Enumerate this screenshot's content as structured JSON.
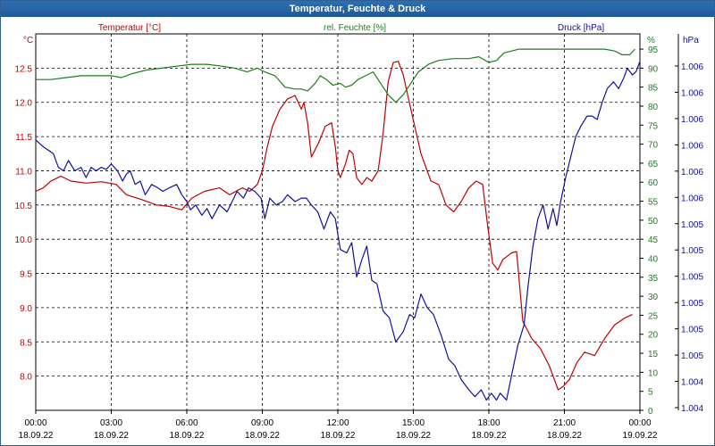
{
  "window": {
    "title": "Temperatur, Feuchte & Druck"
  },
  "colors": {
    "temperature": "#c00000",
    "humidity": "#1a7f1a",
    "pressure": "#1010a0",
    "grid": "#000000"
  },
  "chart_data": {
    "type": "line",
    "legend": {
      "temperature": "Temperatur [°C]",
      "humidity": "rel. Feuchte [%]",
      "pressure": "Druck [hPa]"
    },
    "axes": {
      "left": {
        "unit": "°C",
        "ticks": [
          "12.5",
          "12.0",
          "11.5",
          "11.0",
          "10.5",
          "10.0",
          "9.5",
          "9.0",
          "8.5",
          "8.0"
        ],
        "range": [
          7.5,
          13.0
        ]
      },
      "middle": {
        "unit": "%",
        "ticks": [
          "95",
          "90",
          "85",
          "80",
          "75",
          "70",
          "65",
          "60",
          "55",
          "50",
          "45",
          "40",
          "35",
          "30",
          "25",
          "20",
          "15",
          "10",
          "5",
          "0"
        ],
        "range": [
          0,
          99
        ]
      },
      "right": {
        "unit": "hPa",
        "ticks": [
          "1.006",
          "1.006",
          "1.006",
          "1.006",
          "1.006",
          "1.006",
          "1.005",
          "1.005",
          "1.005",
          "1.005",
          "1.005",
          "1.005",
          "1.004",
          "1.004"
        ]
      }
    },
    "x": {
      "ticks": [
        {
          "time": "00:00",
          "date": "18.09.22"
        },
        {
          "time": "03:00",
          "date": "18.09.22"
        },
        {
          "time": "06:00",
          "date": "18.09.22"
        },
        {
          "time": "09:00",
          "date": "18.09.22"
        },
        {
          "time": "12:00",
          "date": "18.09.22"
        },
        {
          "time": "15:00",
          "date": "18.09.22"
        },
        {
          "time": "18:00",
          "date": "18.09.22"
        },
        {
          "time": "21:00",
          "date": "18.09.22"
        },
        {
          "time": "00:00",
          "date": "19.09.22"
        }
      ]
    },
    "series": [
      {
        "name": "Temperatur [°C]",
        "axis": "left",
        "points": [
          [
            0,
            10.7
          ],
          [
            0.3,
            10.75
          ],
          [
            0.6,
            10.85
          ],
          [
            1.0,
            10.92
          ],
          [
            1.4,
            10.85
          ],
          [
            2.0,
            10.82
          ],
          [
            2.6,
            10.84
          ],
          [
            3.2,
            10.8
          ],
          [
            3.6,
            10.65
          ],
          [
            4.2,
            10.58
          ],
          [
            4.8,
            10.5
          ],
          [
            5.3,
            10.48
          ],
          [
            5.8,
            10.43
          ],
          [
            6.2,
            10.6
          ],
          [
            6.7,
            10.7
          ],
          [
            7.3,
            10.75
          ],
          [
            7.7,
            10.65
          ],
          [
            8.2,
            10.75
          ],
          [
            8.5,
            10.7
          ],
          [
            8.8,
            10.8
          ],
          [
            9.0,
            11.0
          ],
          [
            9.2,
            11.35
          ],
          [
            9.4,
            11.65
          ],
          [
            9.7,
            11.9
          ],
          [
            10.0,
            12.05
          ],
          [
            10.3,
            12.1
          ],
          [
            10.55,
            11.9
          ],
          [
            10.65,
            12.0
          ],
          [
            10.8,
            11.7
          ],
          [
            10.95,
            11.2
          ],
          [
            11.25,
            11.42
          ],
          [
            11.5,
            11.65
          ],
          [
            11.75,
            11.7
          ],
          [
            11.9,
            11.35
          ],
          [
            12.0,
            11.0
          ],
          [
            12.1,
            10.9
          ],
          [
            12.3,
            11.1
          ],
          [
            12.45,
            11.3
          ],
          [
            12.6,
            11.25
          ],
          [
            12.75,
            10.9
          ],
          [
            12.95,
            10.8
          ],
          [
            13.15,
            10.9
          ],
          [
            13.35,
            10.85
          ],
          [
            13.6,
            11.0
          ],
          [
            13.8,
            11.55
          ],
          [
            14.0,
            12.3
          ],
          [
            14.2,
            12.58
          ],
          [
            14.4,
            12.6
          ],
          [
            14.6,
            12.4
          ],
          [
            14.9,
            11.9
          ],
          [
            15.3,
            11.25
          ],
          [
            15.7,
            10.85
          ],
          [
            16.0,
            10.8
          ],
          [
            16.3,
            10.5
          ],
          [
            16.6,
            10.4
          ],
          [
            16.9,
            10.55
          ],
          [
            17.2,
            10.75
          ],
          [
            17.5,
            10.85
          ],
          [
            17.75,
            10.8
          ],
          [
            17.95,
            10.2
          ],
          [
            18.15,
            9.65
          ],
          [
            18.35,
            9.55
          ],
          [
            18.55,
            9.7
          ],
          [
            18.9,
            9.8
          ],
          [
            19.1,
            9.82
          ],
          [
            19.35,
            8.8
          ],
          [
            19.7,
            8.55
          ],
          [
            20.05,
            8.4
          ],
          [
            20.4,
            8.15
          ],
          [
            20.75,
            7.8
          ],
          [
            20.95,
            7.85
          ],
          [
            21.2,
            7.95
          ],
          [
            21.5,
            8.2
          ],
          [
            21.8,
            8.35
          ],
          [
            22.2,
            8.3
          ],
          [
            22.6,
            8.55
          ],
          [
            23.0,
            8.75
          ],
          [
            23.4,
            8.85
          ],
          [
            23.7,
            8.9
          ]
        ]
      },
      {
        "name": "rel. Feuchte [%]",
        "axis": "middle",
        "points": [
          [
            0,
            87
          ],
          [
            0.6,
            87
          ],
          [
            1.2,
            87.5
          ],
          [
            1.8,
            88
          ],
          [
            2.4,
            88
          ],
          [
            3.0,
            88
          ],
          [
            3.4,
            87.5
          ],
          [
            3.8,
            88.5
          ],
          [
            4.4,
            89.5
          ],
          [
            5.0,
            90
          ],
          [
            5.6,
            90.5
          ],
          [
            6.2,
            91
          ],
          [
            6.8,
            91
          ],
          [
            7.4,
            90.5
          ],
          [
            7.9,
            90
          ],
          [
            8.4,
            89
          ],
          [
            8.8,
            90
          ],
          [
            9.1,
            89
          ],
          [
            9.5,
            88
          ],
          [
            9.9,
            85
          ],
          [
            10.3,
            84.5
          ],
          [
            10.55,
            84.5
          ],
          [
            10.8,
            84
          ],
          [
            11.1,
            86
          ],
          [
            11.3,
            88
          ],
          [
            11.55,
            87
          ],
          [
            11.8,
            85.5
          ],
          [
            12.1,
            86
          ],
          [
            12.3,
            85
          ],
          [
            12.55,
            85.5
          ],
          [
            12.8,
            87
          ],
          [
            13.1,
            88
          ],
          [
            13.4,
            89
          ],
          [
            13.7,
            86
          ],
          [
            14.0,
            83
          ],
          [
            14.3,
            81
          ],
          [
            14.6,
            83
          ],
          [
            14.9,
            86
          ],
          [
            15.2,
            89
          ],
          [
            15.6,
            91
          ],
          [
            16.0,
            92
          ],
          [
            16.6,
            92.5
          ],
          [
            17.2,
            92.5
          ],
          [
            17.6,
            93
          ],
          [
            18.0,
            91.5
          ],
          [
            18.3,
            92
          ],
          [
            18.6,
            94
          ],
          [
            19.2,
            95
          ],
          [
            20.0,
            95
          ],
          [
            21.0,
            95
          ],
          [
            22.0,
            95
          ],
          [
            22.6,
            95
          ],
          [
            23.0,
            94.5
          ],
          [
            23.3,
            93.5
          ],
          [
            23.6,
            93.5
          ],
          [
            23.8,
            95
          ]
        ]
      },
      {
        "name": "Druck [hPa]",
        "axis": "right",
        "points": [
          [
            0,
            11.45
          ],
          [
            0.3,
            11.35
          ],
          [
            0.5,
            11.3
          ],
          [
            0.7,
            11.25
          ],
          [
            0.9,
            11.05
          ],
          [
            1.1,
            11.0
          ],
          [
            1.3,
            11.15
          ],
          [
            1.55,
            11.0
          ],
          [
            1.8,
            11.05
          ],
          [
            2.0,
            10.9
          ],
          [
            2.2,
            11.05
          ],
          [
            2.4,
            11.0
          ],
          [
            2.6,
            11.05
          ],
          [
            2.8,
            11.02
          ],
          [
            3.0,
            11.1
          ],
          [
            3.25,
            11.0
          ],
          [
            3.45,
            10.85
          ],
          [
            3.6,
            10.95
          ],
          [
            3.75,
            11.0
          ],
          [
            3.95,
            10.8
          ],
          [
            4.15,
            10.85
          ],
          [
            4.35,
            10.65
          ],
          [
            4.6,
            10.8
          ],
          [
            4.85,
            10.75
          ],
          [
            5.05,
            10.7
          ],
          [
            5.3,
            10.75
          ],
          [
            5.6,
            10.8
          ],
          [
            5.8,
            10.65
          ],
          [
            6.0,
            10.55
          ],
          [
            6.15,
            10.43
          ],
          [
            6.35,
            10.5
          ],
          [
            6.6,
            10.35
          ],
          [
            6.8,
            10.45
          ],
          [
            7.0,
            10.3
          ],
          [
            7.3,
            10.5
          ],
          [
            7.6,
            10.4
          ],
          [
            7.8,
            10.55
          ],
          [
            8.0,
            10.7
          ],
          [
            8.25,
            10.6
          ],
          [
            8.45,
            10.75
          ],
          [
            8.7,
            10.7
          ],
          [
            8.95,
            10.6
          ],
          [
            9.1,
            10.3
          ],
          [
            9.3,
            10.6
          ],
          [
            9.55,
            10.5
          ],
          [
            9.8,
            10.55
          ],
          [
            10.0,
            10.65
          ],
          [
            10.3,
            10.55
          ],
          [
            10.55,
            10.6
          ],
          [
            10.75,
            10.6
          ],
          [
            10.95,
            10.5
          ],
          [
            11.2,
            10.4
          ],
          [
            11.45,
            10.15
          ],
          [
            11.7,
            10.4
          ],
          [
            11.9,
            10.3
          ],
          [
            12.1,
            9.85
          ],
          [
            12.35,
            9.8
          ],
          [
            12.55,
            9.95
          ],
          [
            12.75,
            9.45
          ],
          [
            12.95,
            9.7
          ],
          [
            13.15,
            9.9
          ],
          [
            13.35,
            9.4
          ],
          [
            13.55,
            9.35
          ],
          [
            13.8,
            8.95
          ],
          [
            14.05,
            8.85
          ],
          [
            14.3,
            8.5
          ],
          [
            14.6,
            8.65
          ],
          [
            14.85,
            8.9
          ],
          [
            15.05,
            8.85
          ],
          [
            15.3,
            9.2
          ],
          [
            15.55,
            9.0
          ],
          [
            15.8,
            8.9
          ],
          [
            16.1,
            8.6
          ],
          [
            16.4,
            8.25
          ],
          [
            16.65,
            8.15
          ],
          [
            16.9,
            7.95
          ],
          [
            17.2,
            7.8
          ],
          [
            17.45,
            7.7
          ],
          [
            17.7,
            7.8
          ],
          [
            17.9,
            7.65
          ],
          [
            18.1,
            7.75
          ],
          [
            18.3,
            7.65
          ],
          [
            18.45,
            7.75
          ],
          [
            18.7,
            7.65
          ],
          [
            18.95,
            8.1
          ],
          [
            19.15,
            8.45
          ],
          [
            19.4,
            8.75
          ],
          [
            19.55,
            9.3
          ],
          [
            19.75,
            9.9
          ],
          [
            19.95,
            10.3
          ],
          [
            20.15,
            10.5
          ],
          [
            20.35,
            10.15
          ],
          [
            20.55,
            10.45
          ],
          [
            20.7,
            10.2
          ],
          [
            20.85,
            10.55
          ],
          [
            21.05,
            10.9
          ],
          [
            21.25,
            11.2
          ],
          [
            21.45,
            11.5
          ],
          [
            21.65,
            11.65
          ],
          [
            21.9,
            11.8
          ],
          [
            22.1,
            11.8
          ],
          [
            22.3,
            11.75
          ],
          [
            22.5,
            12.0
          ],
          [
            22.7,
            12.2
          ],
          [
            22.95,
            12.3
          ],
          [
            23.15,
            12.2
          ],
          [
            23.35,
            12.35
          ],
          [
            23.5,
            12.5
          ],
          [
            23.7,
            12.4
          ],
          [
            23.85,
            12.45
          ],
          [
            24,
            12.6
          ]
        ]
      }
    ]
  }
}
